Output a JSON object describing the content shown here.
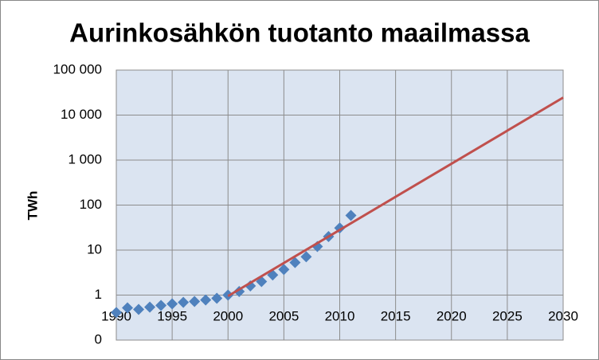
{
  "chart_data": {
    "type": "line",
    "title": "Aurinkosähkön tuotanto maailmassa",
    "y_label": "TWh",
    "log_y": true,
    "grid": true,
    "xlim": [
      1990,
      2030
    ],
    "xticks": [
      1990,
      1995,
      2000,
      2005,
      2010,
      2015,
      2020,
      2025,
      2030
    ],
    "ylim": [
      0.1,
      100000
    ],
    "yticks": [
      {
        "value": 0.1,
        "label": "0"
      },
      1,
      10,
      100,
      {
        "value": 1000,
        "label": "1 000"
      },
      {
        "value": 10000,
        "label": "10 000"
      },
      {
        "value": 100000,
        "label": "100 000"
      }
    ],
    "series": [
      {
        "color": "#4f81bd",
        "marker": "diamond",
        "line": false,
        "x": [
          1990,
          1991,
          1992,
          1993,
          1994,
          1995,
          1996,
          1997,
          1998,
          1999,
          2000,
          2001,
          2002,
          2003,
          2004,
          2005,
          2006,
          2007,
          2008,
          2009,
          2010,
          2011
        ],
        "values": [
          0.41,
          0.52,
          0.48,
          0.54,
          0.59,
          0.64,
          0.69,
          0.72,
          0.78,
          0.85,
          1.0,
          1.2,
          1.6,
          2.0,
          2.8,
          3.7,
          5.3,
          7.1,
          12,
          20,
          31,
          59
        ]
      },
      {
        "color": "#c0504d",
        "marker": "none",
        "line": true,
        "x": [
          2000,
          2030
        ],
        "values": [
          0.95,
          24500
        ]
      }
    ]
  }
}
